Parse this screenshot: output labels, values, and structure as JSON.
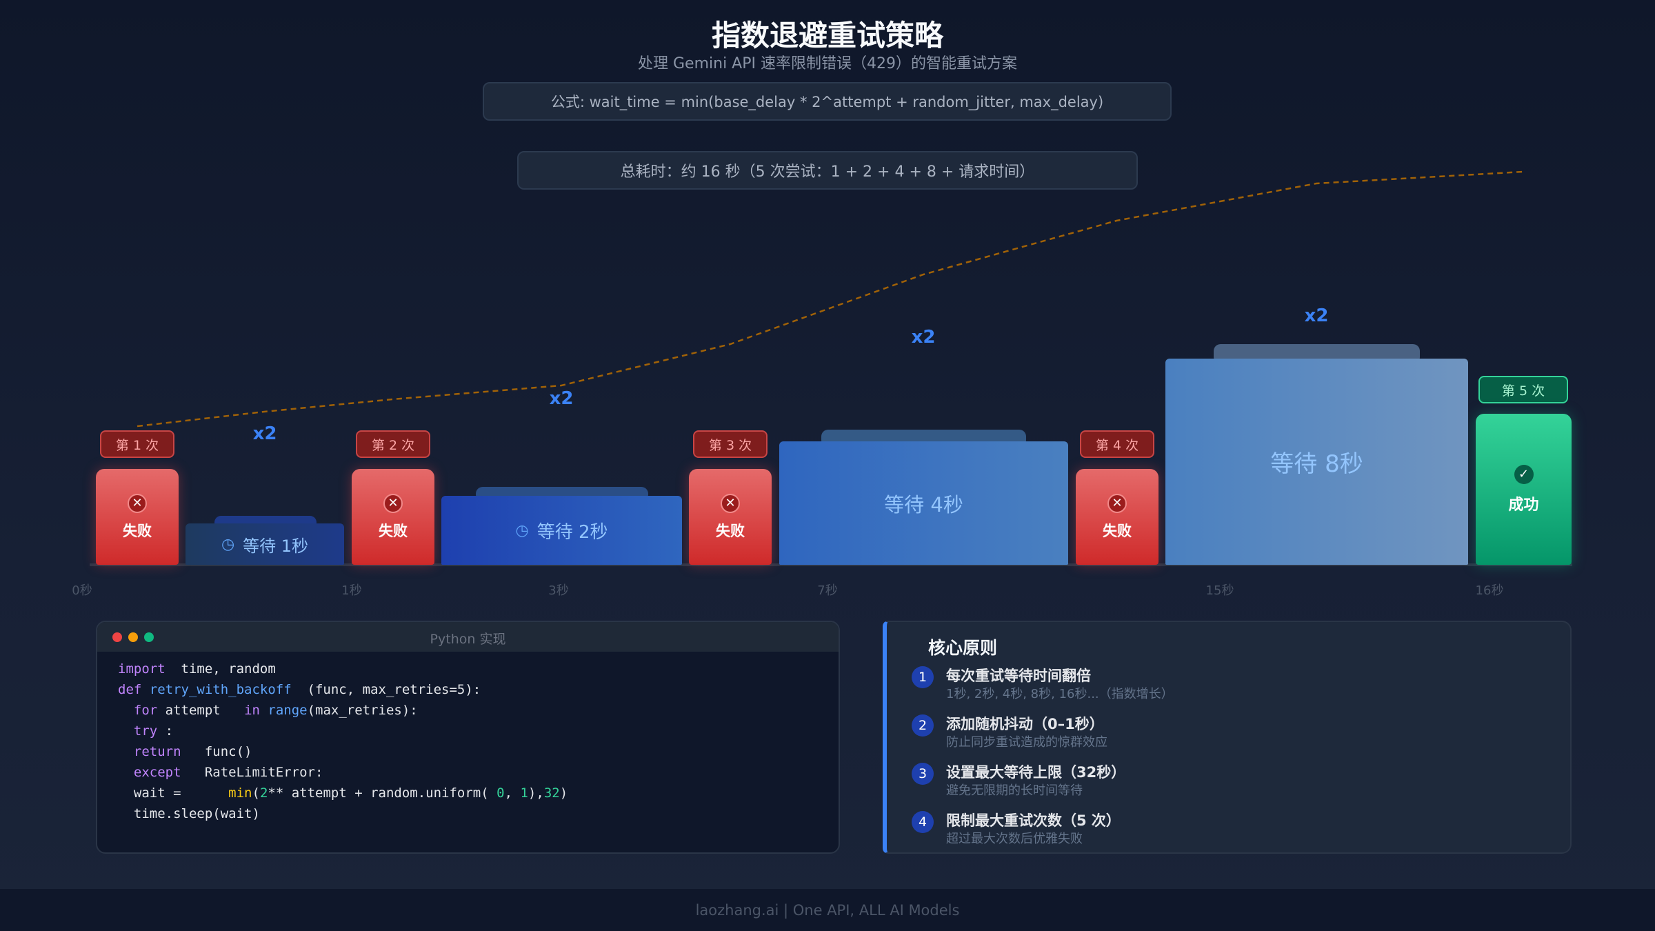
{
  "header": {
    "title": "指数退避重试策略",
    "subtitle": "处理 Gemini API 速率限制错误（429）的智能重试方案",
    "formula": "公式: wait_time = min(base_delay * 2^attempt + random_jitter, max_delay)",
    "total": "总耗时：约 16 秒（5 次尝试：1 + 2 + 4 + 8 + 请求时间）"
  },
  "timeline": {
    "attempts": [
      {
        "label": "第 1 次",
        "status": "失败",
        "icon": "x-circle-icon"
      },
      {
        "label": "第 2 次",
        "status": "失败",
        "icon": "x-circle-icon"
      },
      {
        "label": "第 3 次",
        "status": "失败",
        "icon": "x-circle-icon"
      },
      {
        "label": "第 4 次",
        "status": "失败",
        "icon": "x-circle-icon"
      },
      {
        "label": "第 5 次",
        "status": "成功",
        "icon": "check-circle-icon"
      }
    ],
    "waits": [
      {
        "seconds": 1,
        "label": "等待 1秒",
        "multiplier": "x2",
        "icon": "clock-icon"
      },
      {
        "seconds": 2,
        "label": "等待 2秒",
        "multiplier": "x2",
        "icon": "clock-icon"
      },
      {
        "seconds": 4,
        "label": "等待 4秒",
        "multiplier": "x2"
      },
      {
        "seconds": 8,
        "label": "等待 8秒",
        "multiplier": "x2"
      }
    ],
    "ticks": [
      "0秒",
      "1秒",
      "3秒",
      "7秒",
      "15秒",
      "16秒"
    ],
    "colors": {
      "fail": "#dc2626",
      "success": "#10b981",
      "wait": "#3b82f6",
      "cumulative_line": "#a16207"
    }
  },
  "code": {
    "title": "Python 实现",
    "lines": [
      [
        [
          "kw",
          "import"
        ],
        [
          "t",
          "  time, random"
        ]
      ],
      [
        [
          "kw",
          "def"
        ],
        [
          "fn",
          " retry_with_backoff"
        ],
        [
          "t",
          "  (func, max_retries=5):"
        ]
      ],
      [
        [
          "t",
          "  "
        ],
        [
          "kw",
          "for"
        ],
        [
          "t",
          " attempt   "
        ],
        [
          "kw",
          "in"
        ],
        [
          "fn",
          " range"
        ],
        [
          "t",
          "(max_retries):"
        ]
      ],
      [
        [
          "t",
          "  "
        ],
        [
          "kw",
          "try"
        ],
        [
          "t",
          " :"
        ]
      ],
      [
        [
          "t",
          "  "
        ],
        [
          "kw",
          "return"
        ],
        [
          "t",
          "   func()"
        ]
      ],
      [
        [
          "t",
          "  "
        ],
        [
          "kw",
          "except"
        ],
        [
          "t",
          "   RateLimitError:"
        ]
      ],
      [
        [
          "t",
          "  wait =      "
        ],
        [
          "bi",
          "min"
        ],
        [
          "t",
          "("
        ],
        [
          "num",
          "2"
        ],
        [
          "t",
          "** attempt + random.uniform( "
        ],
        [
          "num",
          "0"
        ],
        [
          "t",
          ", "
        ],
        [
          "num",
          "1"
        ],
        [
          "t",
          "),"
        ],
        [
          "num",
          "32"
        ],
        [
          "t",
          ")"
        ]
      ],
      [
        [
          "t",
          "  time.sleep(wait)"
        ]
      ]
    ]
  },
  "principles": {
    "title": "核心原则",
    "items": [
      {
        "num": "1",
        "title": "每次重试等待时间翻倍",
        "desc": "1秒, 2秒, 4秒, 8秒, 16秒...（指数增长）"
      },
      {
        "num": "2",
        "title": "添加随机抖动（0–1秒）",
        "desc": "防止同步重试造成的惊群效应"
      },
      {
        "num": "3",
        "title": "设置最大等待上限（32秒）",
        "desc": "避免无限期的长时间等待"
      },
      {
        "num": "4",
        "title": "限制最大重试次数（5 次）",
        "desc": "超过最大次数后优雅失败"
      }
    ]
  },
  "footer": "laozhang.ai | One API, ALL AI Models"
}
